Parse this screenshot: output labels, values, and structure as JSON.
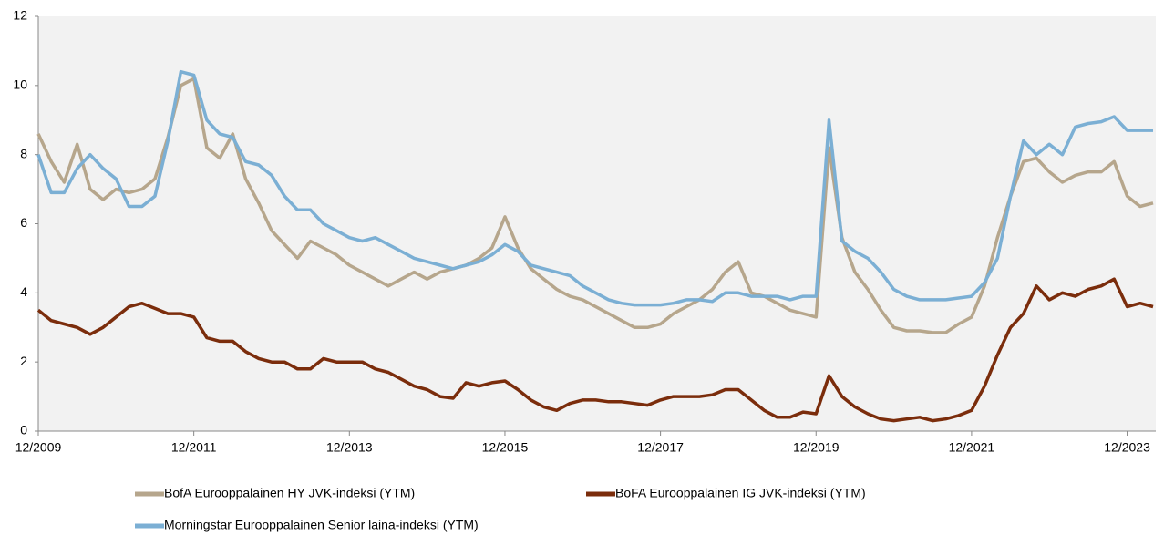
{
  "chart_data": {
    "type": "line",
    "x": [
      "12/2009",
      "02/2010",
      "04/2010",
      "06/2010",
      "08/2010",
      "10/2010",
      "12/2010",
      "02/2011",
      "04/2011",
      "06/2011",
      "08/2011",
      "10/2011",
      "12/2011",
      "02/2012",
      "04/2012",
      "06/2012",
      "08/2012",
      "10/2012",
      "12/2012",
      "02/2013",
      "04/2013",
      "06/2013",
      "08/2013",
      "10/2013",
      "12/2013",
      "02/2014",
      "04/2014",
      "06/2014",
      "08/2014",
      "10/2014",
      "12/2014",
      "02/2015",
      "04/2015",
      "06/2015",
      "08/2015",
      "10/2015",
      "12/2015",
      "02/2016",
      "04/2016",
      "06/2016",
      "08/2016",
      "10/2016",
      "12/2016",
      "02/2017",
      "04/2017",
      "06/2017",
      "08/2017",
      "10/2017",
      "12/2017",
      "02/2018",
      "04/2018",
      "06/2018",
      "08/2018",
      "10/2018",
      "12/2018",
      "02/2019",
      "04/2019",
      "06/2019",
      "08/2019",
      "10/2019",
      "12/2019",
      "02/2020",
      "04/2020",
      "06/2020",
      "08/2020",
      "10/2020",
      "12/2020",
      "02/2021",
      "04/2021",
      "06/2021",
      "08/2021",
      "10/2021",
      "12/2021",
      "02/2022",
      "04/2022",
      "06/2022",
      "08/2022",
      "10/2022",
      "12/2022",
      "02/2023",
      "04/2023",
      "06/2023",
      "08/2023",
      "10/2023",
      "12/2023",
      "02/2024",
      "04/2024"
    ],
    "series": [
      {
        "name": "BofA Eurooppalainen HY JVK-indeksi (YTM)",
        "color": "#b6a68c",
        "values": [
          8.6,
          7.8,
          7.2,
          8.3,
          7.0,
          6.7,
          7.0,
          6.9,
          7.0,
          7.3,
          8.5,
          10.0,
          10.2,
          8.2,
          7.9,
          8.6,
          7.3,
          6.6,
          5.8,
          5.4,
          5.0,
          5.5,
          5.3,
          5.1,
          4.8,
          4.6,
          4.4,
          4.2,
          4.4,
          4.6,
          4.4,
          4.6,
          4.7,
          4.8,
          5.0,
          5.3,
          6.2,
          5.3,
          4.7,
          4.4,
          4.1,
          3.9,
          3.8,
          3.6,
          3.4,
          3.2,
          3.0,
          3.0,
          3.1,
          3.4,
          3.6,
          3.8,
          4.1,
          4.6,
          4.9,
          4.0,
          3.9,
          3.7,
          3.5,
          3.4,
          3.3,
          8.2,
          5.6,
          4.6,
          4.1,
          3.5,
          3.0,
          2.9,
          2.9,
          2.85,
          2.85,
          3.1,
          3.3,
          4.2,
          5.6,
          6.8,
          7.8,
          7.9,
          7.5,
          7.2,
          7.4,
          7.5,
          7.5,
          7.8,
          6.8,
          6.5,
          6.6
        ]
      },
      {
        "name": "BoFA Eurooppalainen IG JVK-indeksi (YTM)",
        "color": "#7b2d0c",
        "values": [
          3.5,
          3.2,
          3.1,
          3.0,
          2.8,
          3.0,
          3.3,
          3.6,
          3.7,
          3.55,
          3.4,
          3.4,
          3.3,
          2.7,
          2.6,
          2.6,
          2.3,
          2.1,
          2.0,
          2.0,
          1.8,
          1.8,
          2.1,
          2.0,
          2.0,
          2.0,
          1.8,
          1.7,
          1.5,
          1.3,
          1.2,
          1.0,
          0.95,
          1.4,
          1.3,
          1.4,
          1.45,
          1.2,
          0.9,
          0.7,
          0.6,
          0.8,
          0.9,
          0.9,
          0.85,
          0.85,
          0.8,
          0.75,
          0.9,
          1.0,
          1.0,
          1.0,
          1.05,
          1.2,
          1.2,
          0.9,
          0.6,
          0.4,
          0.4,
          0.55,
          0.5,
          1.6,
          1.0,
          0.7,
          0.5,
          0.35,
          0.3,
          0.35,
          0.4,
          0.3,
          0.35,
          0.45,
          0.6,
          1.3,
          2.2,
          3.0,
          3.4,
          4.2,
          3.8,
          4.0,
          3.9,
          4.1,
          4.2,
          4.4,
          3.6,
          3.7,
          3.6
        ]
      },
      {
        "name": "Morningstar Eurooppalainen Senior laina-indeksi (YTM)",
        "color": "#7bafd4",
        "values": [
          8.0,
          6.9,
          6.9,
          7.6,
          8.0,
          7.6,
          7.3,
          6.5,
          6.5,
          6.8,
          8.4,
          10.4,
          10.3,
          9.0,
          8.6,
          8.5,
          7.8,
          7.7,
          7.4,
          6.8,
          6.4,
          6.4,
          6.0,
          5.8,
          5.6,
          5.5,
          5.6,
          5.4,
          5.2,
          5.0,
          4.9,
          4.8,
          4.7,
          4.8,
          4.9,
          5.1,
          5.4,
          5.2,
          4.8,
          4.7,
          4.6,
          4.5,
          4.2,
          4.0,
          3.8,
          3.7,
          3.65,
          3.65,
          3.65,
          3.7,
          3.8,
          3.8,
          3.75,
          4.0,
          4.0,
          3.9,
          3.9,
          3.9,
          3.8,
          3.9,
          3.9,
          9.0,
          5.5,
          5.2,
          5.0,
          4.6,
          4.1,
          3.9,
          3.8,
          3.8,
          3.8,
          3.85,
          3.9,
          4.3,
          5.0,
          6.8,
          8.4,
          8.0,
          8.3,
          8.0,
          8.8,
          8.9,
          8.95,
          9.1,
          8.7,
          8.7,
          8.7
        ]
      }
    ],
    "xlim": [
      "12/2009",
      "04/2024"
    ],
    "xticks": [
      "12/2009",
      "12/2011",
      "12/2013",
      "12/2015",
      "12/2017",
      "12/2019",
      "12/2021",
      "12/2023"
    ],
    "ylim": [
      0,
      12
    ],
    "yticks": [
      0,
      2,
      4,
      6,
      8,
      10,
      12
    ],
    "legend": "bottom"
  }
}
